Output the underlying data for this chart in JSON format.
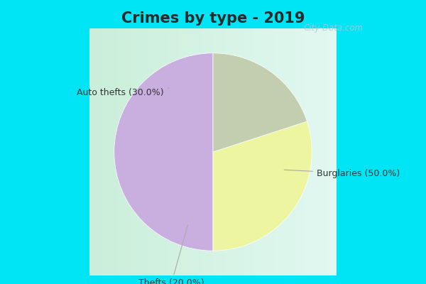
{
  "title": "Crimes by type - 2019",
  "title_fontsize": 15,
  "slices": [
    {
      "label": "Burglaries (50.0%)",
      "value": 50.0,
      "color": "#c9aee0"
    },
    {
      "label": "Auto thefts (30.0%)",
      "value": 30.0,
      "color": "#eef5a0"
    },
    {
      "label": "Thefts (20.0%)",
      "value": 20.0,
      "color": "#c2ceaf"
    }
  ],
  "background_cyan": "#00e5f5",
  "background_inner": "#d0ede0",
  "watermark": "City-Data.com",
  "startangle": 90,
  "label_fontsize": 9,
  "label_color": "#333333",
  "line_color": "#aaaaaa"
}
